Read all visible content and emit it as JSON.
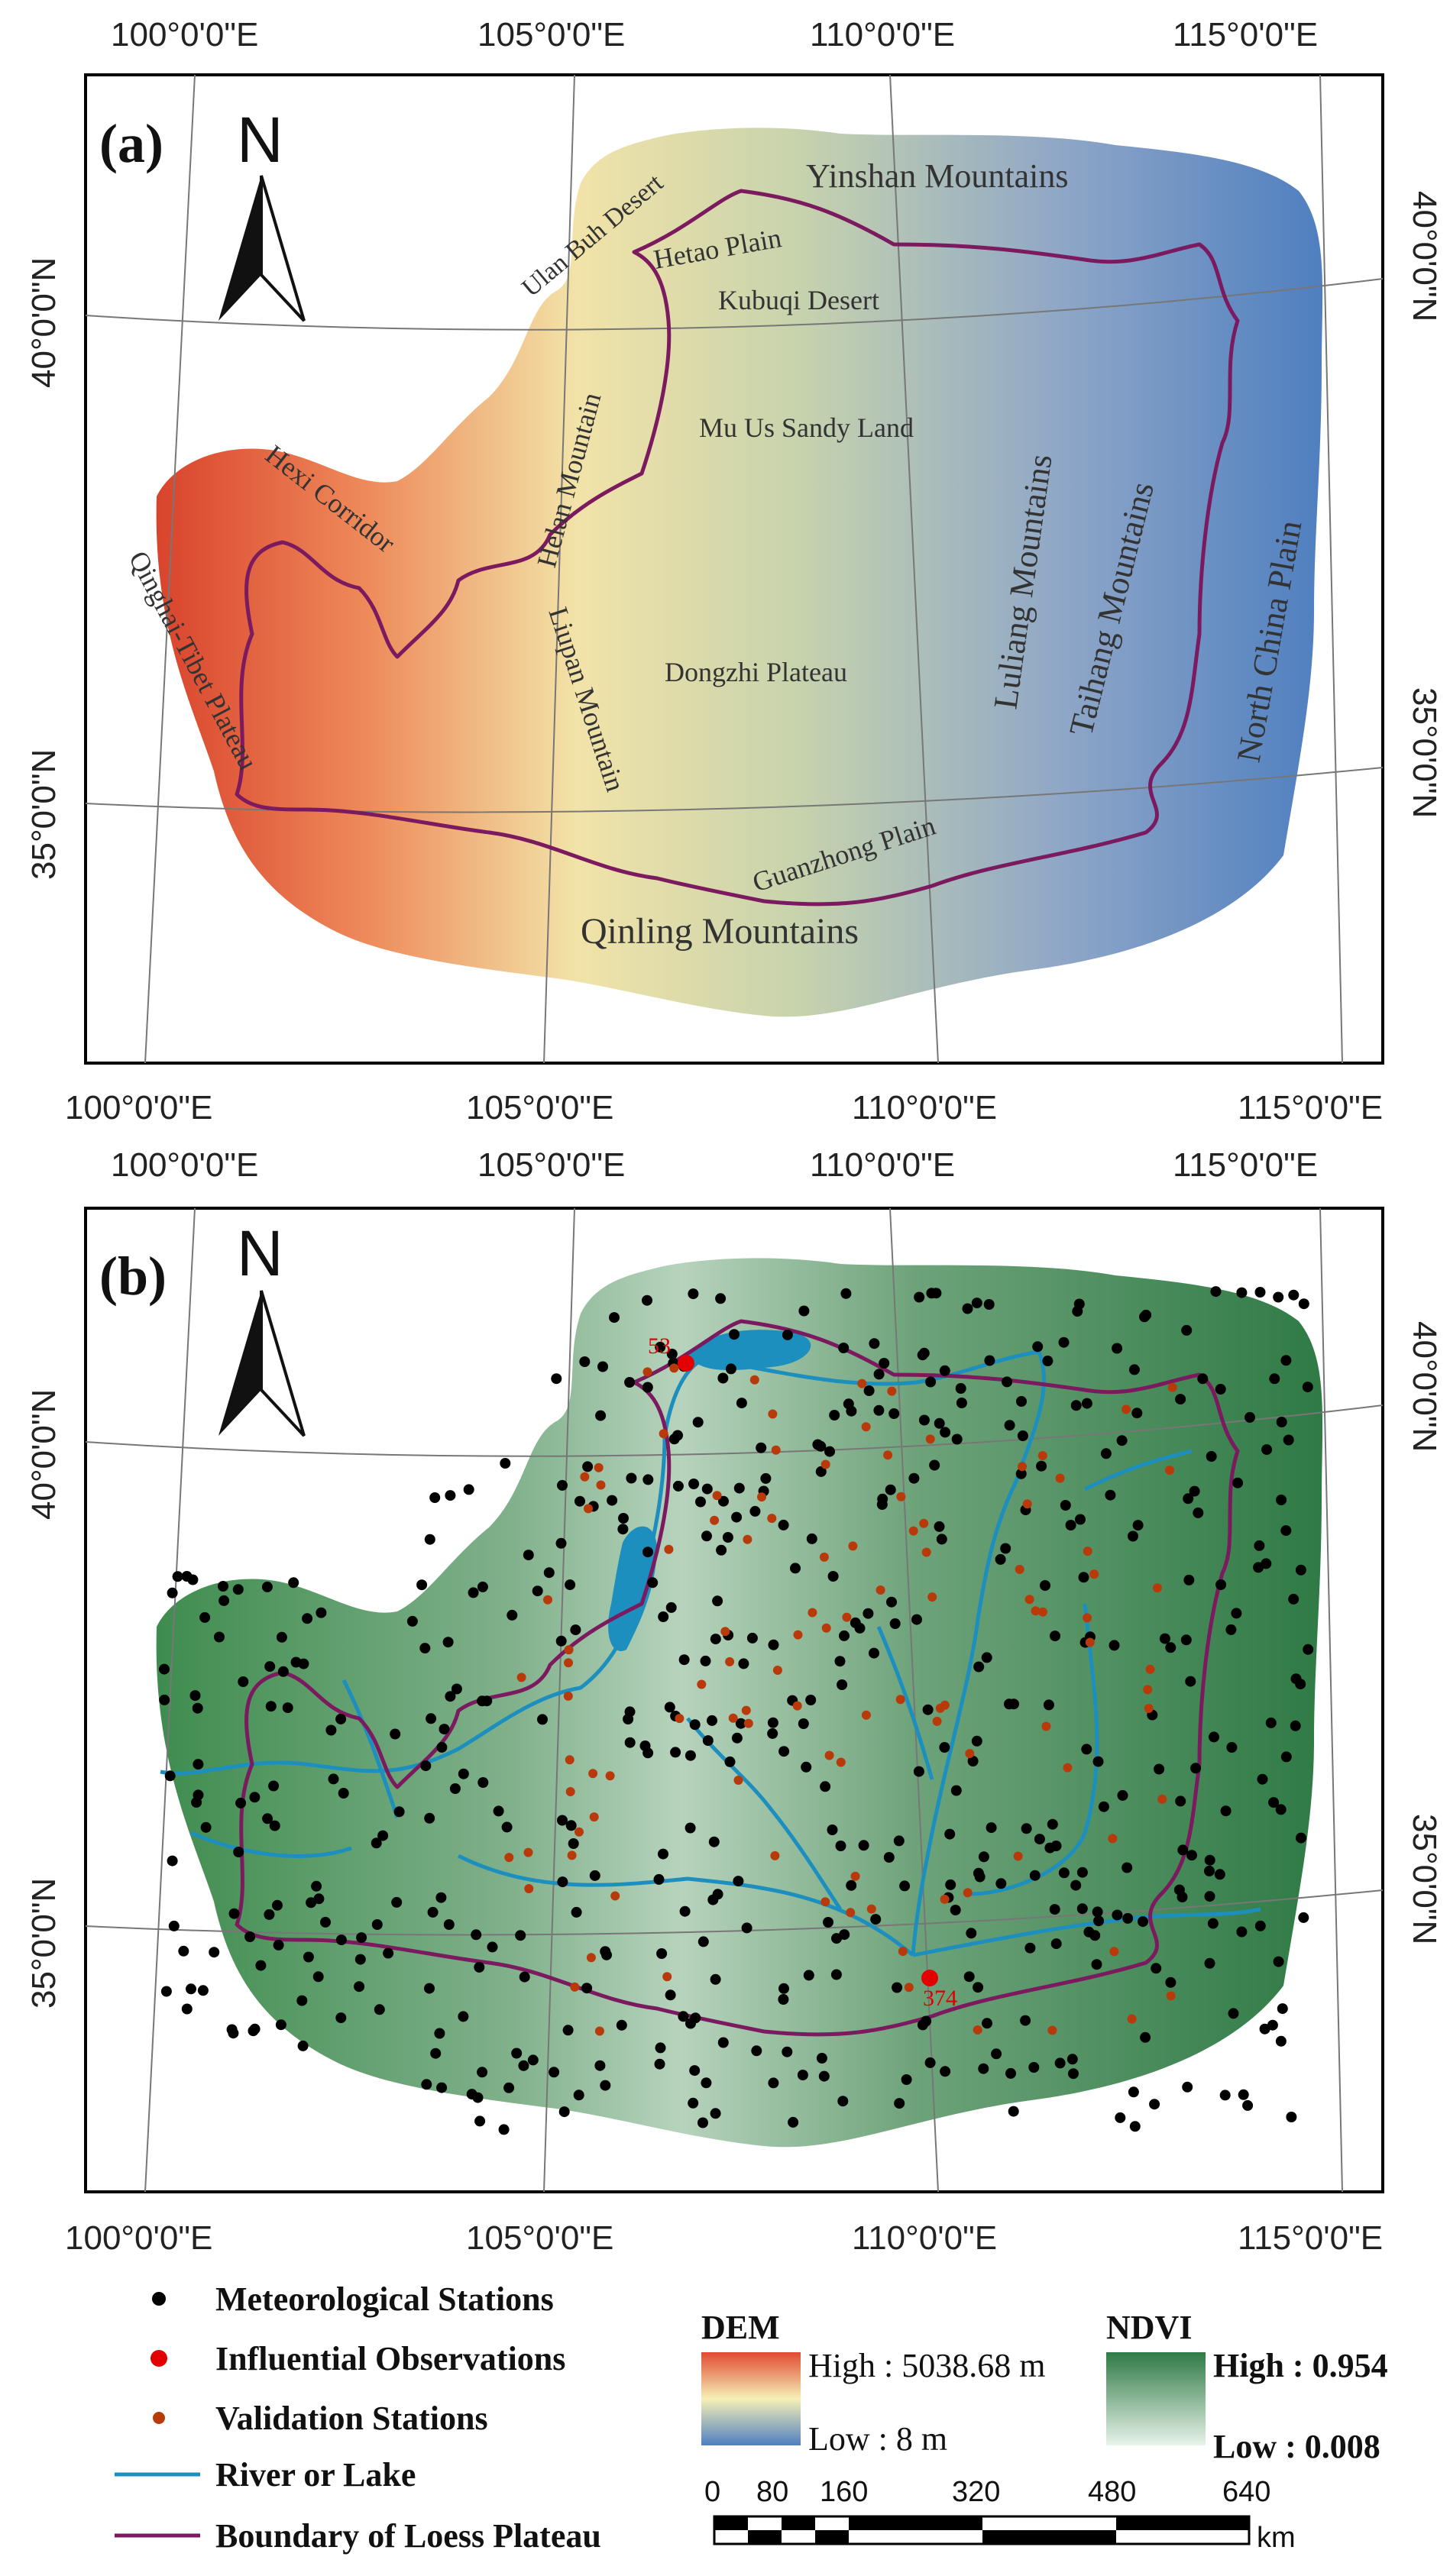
{
  "panel_a": {
    "label": "(a)",
    "north": "N",
    "top_lon_ticks": [
      "100°0'0\"E",
      "105°0'0\"E",
      "110°0'0\"E",
      "115°0'0\"E"
    ],
    "bottom_lon_ticks": [
      "100°0'0\"E",
      "105°0'0\"E",
      "110°0'0\"E",
      "115°0'0\"E"
    ],
    "left_lat_ticks": [
      "40°0'0\"N",
      "35°0'0\"N"
    ],
    "right_lat_ticks": [
      "40°0'0\"N",
      "35°0'0\"N"
    ],
    "places": [
      {
        "name": "Yinshan Mountains"
      },
      {
        "name": "Ulan Buh Desert"
      },
      {
        "name": "Hetao Plain"
      },
      {
        "name": "Kubuqi Desert"
      },
      {
        "name": "Mu Us Sandy Land"
      },
      {
        "name": "Helan Mountain"
      },
      {
        "name": "Hexi Corridor"
      },
      {
        "name": "Qinghai-Tibet Plateau"
      },
      {
        "name": "Liupan Mountain"
      },
      {
        "name": "Dongzhi Plateau"
      },
      {
        "name": "Luliang Mountains"
      },
      {
        "name": "Taihang Mountains"
      },
      {
        "name": "North China Plain"
      },
      {
        "name": "Guanzhong Plain"
      },
      {
        "name": "Qinling Mountains"
      }
    ]
  },
  "panel_b": {
    "label": "(b)",
    "north": "N",
    "top_lon_ticks": [
      "100°0'0\"E",
      "105°0'0\"E",
      "110°0'0\"E",
      "115°0'0\"E"
    ],
    "bottom_lon_ticks": [
      "100°0'0\"E",
      "105°0'0\"E",
      "110°0'0\"E",
      "115°0'0\"E"
    ],
    "left_lat_ticks": [
      "40°0'0\"N",
      "35°0'0\"N"
    ],
    "right_lat_ticks": [
      "40°0'0\"N",
      "35°0'0\"N"
    ],
    "influential_labels": [
      "53",
      "374"
    ]
  },
  "legend": {
    "items": [
      {
        "label": "Meteorological Stations",
        "symbol": "black-dot"
      },
      {
        "label": "Influential Observations",
        "symbol": "red-dot"
      },
      {
        "label": "Validation Stations",
        "symbol": "orange-dot"
      },
      {
        "label": "River or Lake",
        "symbol": "blue-line"
      },
      {
        "label": "Boundary of Loess Plateau",
        "symbol": "purple-line"
      }
    ],
    "dem": {
      "title": "DEM",
      "high": "High : 5038.68 m",
      "low": "Low : 8 m"
    },
    "ndvi": {
      "title": "NDVI",
      "high": "High : 0.954",
      "low": "Low : 0.008"
    },
    "scale": {
      "ticks": [
        "0",
        "80",
        "160",
        "320",
        "480",
        "640"
      ],
      "unit": "km"
    }
  },
  "colors": {
    "boundary": "#7b1a5e",
    "river": "#1c8fbf",
    "meteo": "#000000",
    "influential": "#e30000",
    "validation": "#b83a0a"
  }
}
